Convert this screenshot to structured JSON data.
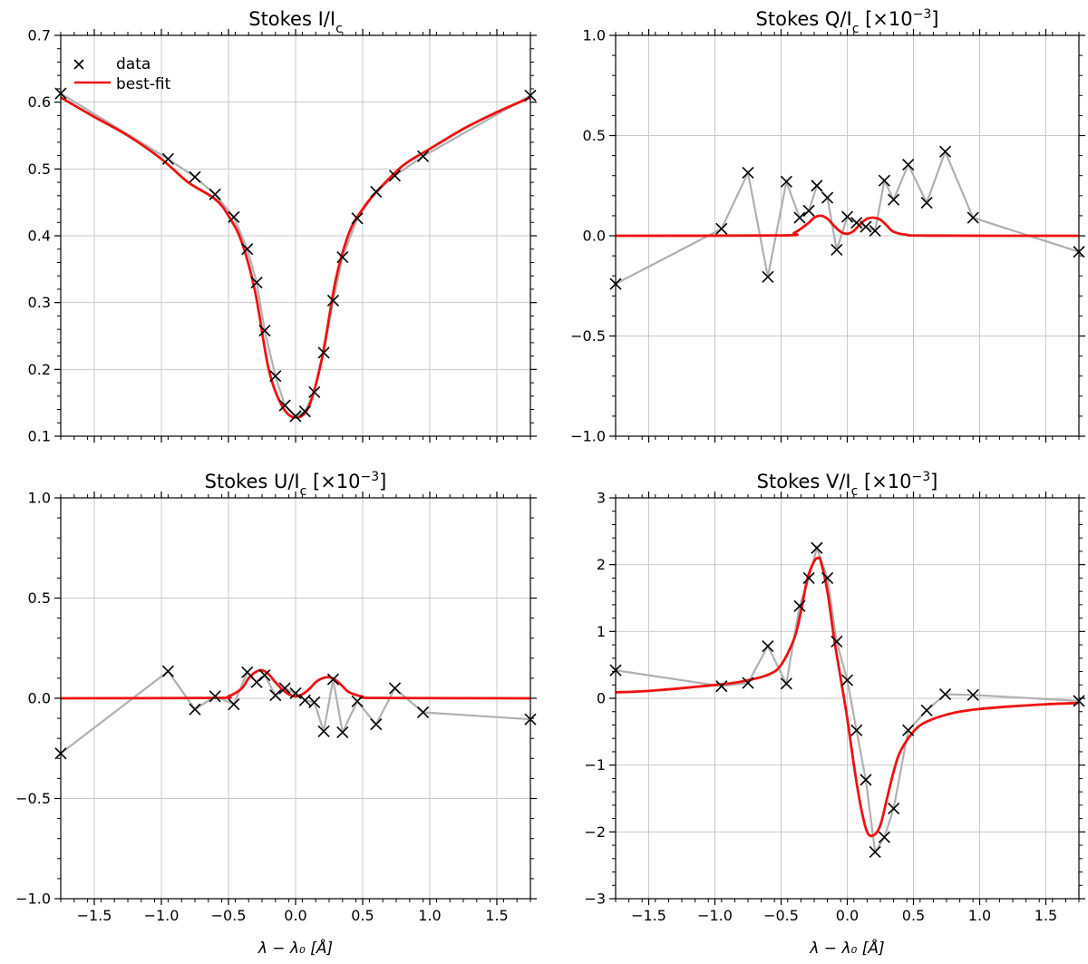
{
  "legend": {
    "data_label": "data",
    "fit_label": "best-fit"
  },
  "colors": {
    "data_line": "#b0b0b0",
    "data_marker": "#000000",
    "fit": "#ee1111",
    "grid": "#c8c8c8"
  },
  "chart_data": [
    {
      "id": "I",
      "type": "line",
      "title": "Stokes I/I",
      "title_sub": "c",
      "title_suffix": "",
      "xlabel": "",
      "xlim": [
        -1.75,
        1.75
      ],
      "ylim": [
        0.1,
        0.7
      ],
      "yticks": [
        0.1,
        0.2,
        0.3,
        0.4,
        0.5,
        0.6,
        0.7
      ],
      "ytick_labels": [
        "0.1",
        "0.2",
        "0.3",
        "0.4",
        "0.5",
        "0.6",
        "0.7"
      ],
      "xticks": [
        -1.5,
        -1.0,
        -0.5,
        0.0,
        0.5,
        1.0,
        1.5
      ],
      "xtick_labels": [],
      "legend": "top-left",
      "series": [
        {
          "name": "data",
          "style": "marker-x with gray line",
          "x": [
            -1.75,
            -0.95,
            -0.75,
            -0.6,
            -0.46,
            -0.36,
            -0.29,
            -0.23,
            -0.15,
            -0.08,
            0.0,
            0.07,
            0.14,
            0.21,
            0.28,
            0.35,
            0.46,
            0.6,
            0.74,
            0.95,
            1.75
          ],
          "y": [
            0.613,
            0.515,
            0.488,
            0.462,
            0.428,
            0.38,
            0.33,
            0.258,
            0.19,
            0.146,
            0.13,
            0.137,
            0.166,
            0.225,
            0.303,
            0.368,
            0.426,
            0.466,
            0.49,
            0.519,
            0.61
          ]
        },
        {
          "name": "best-fit",
          "style": "red line",
          "x": [
            -1.75,
            -1.5,
            -1.25,
            -1.0,
            -0.8,
            -0.6,
            -0.5,
            -0.4,
            -0.3,
            -0.2,
            -0.1,
            0.0,
            0.1,
            0.2,
            0.3,
            0.4,
            0.5,
            0.6,
            0.8,
            1.0,
            1.25,
            1.5,
            1.75
          ],
          "y": [
            0.607,
            0.578,
            0.55,
            0.515,
            0.48,
            0.455,
            0.43,
            0.39,
            0.315,
            0.2,
            0.145,
            0.128,
            0.145,
            0.22,
            0.335,
            0.405,
            0.44,
            0.465,
            0.505,
            0.53,
            0.56,
            0.585,
            0.607
          ]
        }
      ]
    },
    {
      "id": "Q",
      "type": "line",
      "title": "Stokes Q/I",
      "title_sub": "c",
      "title_suffix": " [×10",
      "title_exp": "−3",
      "title_end": "]",
      "xlabel": "",
      "xlim": [
        -1.75,
        1.75
      ],
      "ylim": [
        -1.0,
        1.0
      ],
      "yticks": [
        -1.0,
        -0.5,
        0.0,
        0.5,
        1.0
      ],
      "ytick_labels": [
        "−1.0",
        "−0.5",
        "0.0",
        "0.5",
        "1.0"
      ],
      "xticks": [
        -1.5,
        -1.0,
        -0.5,
        0.0,
        0.5,
        1.0,
        1.5
      ],
      "xtick_labels": [],
      "series": [
        {
          "name": "data",
          "style": "marker-x with gray line",
          "x": [
            -1.75,
            -0.95,
            -0.75,
            -0.6,
            -0.46,
            -0.36,
            -0.29,
            -0.23,
            -0.15,
            -0.08,
            0.0,
            0.07,
            0.14,
            0.21,
            0.28,
            0.35,
            0.46,
            0.6,
            0.74,
            0.95,
            1.75
          ],
          "y": [
            -0.24,
            0.035,
            0.315,
            -0.205,
            0.27,
            0.09,
            0.125,
            0.25,
            0.19,
            -0.07,
            0.095,
            0.065,
            0.045,
            0.025,
            0.275,
            0.18,
            0.355,
            0.165,
            0.42,
            0.09,
            -0.08
          ]
        },
        {
          "name": "best-fit",
          "style": "red line",
          "x": [
            -1.75,
            -0.5,
            -0.4,
            -0.3,
            -0.25,
            -0.2,
            -0.15,
            -0.1,
            -0.05,
            0.0,
            0.05,
            0.1,
            0.15,
            0.2,
            0.25,
            0.3,
            0.35,
            0.45,
            0.6,
            1.75
          ],
          "y": [
            0.0,
            0.002,
            0.015,
            0.06,
            0.09,
            0.1,
            0.085,
            0.05,
            0.02,
            0.01,
            0.025,
            0.06,
            0.085,
            0.09,
            0.08,
            0.05,
            0.02,
            0.005,
            0.001,
            0.0
          ]
        }
      ]
    },
    {
      "id": "U",
      "type": "line",
      "title": "Stokes U/I",
      "title_sub": "c",
      "title_suffix": " [×10",
      "title_exp": "−3",
      "title_end": "]",
      "xlabel": "λ − λ₀ [Å]",
      "xlim": [
        -1.75,
        1.75
      ],
      "ylim": [
        -1.0,
        1.0
      ],
      "yticks": [
        -1.0,
        -0.5,
        0.0,
        0.5,
        1.0
      ],
      "ytick_labels": [
        "−1.0",
        "−0.5",
        "0.0",
        "0.5",
        "1.0"
      ],
      "xticks": [
        -1.5,
        -1.0,
        -0.5,
        0.0,
        0.5,
        1.0,
        1.5
      ],
      "xtick_labels": [
        "−1.5",
        "−1.0",
        "−0.5",
        "0.0",
        "0.5",
        "1.0",
        "1.5"
      ],
      "series": [
        {
          "name": "data",
          "style": "marker-x with gray line",
          "x": [
            -1.75,
            -0.95,
            -0.75,
            -0.6,
            -0.46,
            -0.36,
            -0.29,
            -0.23,
            -0.15,
            -0.08,
            0.0,
            0.07,
            0.14,
            0.21,
            0.28,
            0.35,
            0.46,
            0.6,
            0.74,
            0.95,
            1.75
          ],
          "y": [
            -0.275,
            0.135,
            -0.055,
            0.01,
            -0.03,
            0.13,
            0.08,
            0.115,
            0.015,
            0.05,
            0.025,
            -0.01,
            -0.02,
            -0.165,
            0.095,
            -0.17,
            -0.015,
            -0.13,
            0.05,
            -0.07,
            -0.105
          ]
        },
        {
          "name": "best-fit",
          "style": "red line",
          "x": [
            -1.75,
            -0.6,
            -0.5,
            -0.4,
            -0.35,
            -0.3,
            -0.25,
            -0.2,
            -0.15,
            -0.1,
            -0.05,
            0.0,
            0.05,
            0.1,
            0.15,
            0.2,
            0.25,
            0.3,
            0.35,
            0.4,
            0.5,
            0.6,
            1.75
          ],
          "y": [
            0.0,
            0.002,
            0.01,
            0.05,
            0.1,
            0.13,
            0.14,
            0.12,
            0.08,
            0.045,
            0.02,
            0.01,
            0.02,
            0.045,
            0.08,
            0.1,
            0.105,
            0.09,
            0.06,
            0.03,
            0.008,
            0.002,
            0.0
          ]
        }
      ]
    },
    {
      "id": "V",
      "type": "line",
      "title": "Stokes V/I",
      "title_sub": "c",
      "title_suffix": " [×10",
      "title_exp": "−3",
      "title_end": "]",
      "xlabel": "λ − λ₀ [Å]",
      "xlim": [
        -1.75,
        1.75
      ],
      "ylim": [
        -3,
        3
      ],
      "yticks": [
        -3,
        -2,
        -1,
        0,
        1,
        2,
        3
      ],
      "ytick_labels": [
        "−3",
        "−2",
        "−1",
        "0",
        "1",
        "2",
        "3"
      ],
      "xticks": [
        -1.5,
        -1.0,
        -0.5,
        0.0,
        0.5,
        1.0,
        1.5
      ],
      "xtick_labels": [
        "−1.5",
        "−1.0",
        "−0.5",
        "0.0",
        "0.5",
        "1.0",
        "1.5"
      ],
      "series": [
        {
          "name": "data",
          "style": "marker-x with gray line",
          "x": [
            -1.75,
            -0.95,
            -0.75,
            -0.6,
            -0.46,
            -0.36,
            -0.29,
            -0.23,
            -0.15,
            -0.08,
            0.0,
            0.07,
            0.14,
            0.21,
            0.28,
            0.35,
            0.46,
            0.6,
            0.74,
            0.95,
            1.75
          ],
          "y": [
            0.42,
            0.18,
            0.23,
            0.78,
            0.22,
            1.38,
            1.8,
            2.25,
            1.8,
            0.85,
            0.27,
            -0.48,
            -1.22,
            -2.3,
            -2.08,
            -1.65,
            -0.48,
            -0.18,
            0.06,
            0.05,
            -0.04
          ]
        },
        {
          "name": "best-fit",
          "style": "red line",
          "x": [
            -1.75,
            -1.5,
            -1.0,
            -0.8,
            -0.6,
            -0.5,
            -0.4,
            -0.35,
            -0.3,
            -0.25,
            -0.22,
            -0.2,
            -0.15,
            -0.1,
            -0.05,
            0.0,
            0.05,
            0.1,
            0.15,
            0.2,
            0.25,
            0.3,
            0.35,
            0.4,
            0.5,
            0.6,
            0.8,
            1.0,
            1.25,
            1.5,
            1.75
          ],
          "y": [
            0.09,
            0.11,
            0.2,
            0.25,
            0.35,
            0.5,
            0.9,
            1.3,
            1.8,
            2.05,
            2.1,
            2.05,
            1.6,
            0.9,
            0.3,
            -0.3,
            -1.0,
            -1.6,
            -2.0,
            -2.05,
            -1.9,
            -1.5,
            -1.1,
            -0.8,
            -0.5,
            -0.35,
            -0.22,
            -0.16,
            -0.12,
            -0.09,
            -0.07
          ]
        }
      ]
    }
  ]
}
